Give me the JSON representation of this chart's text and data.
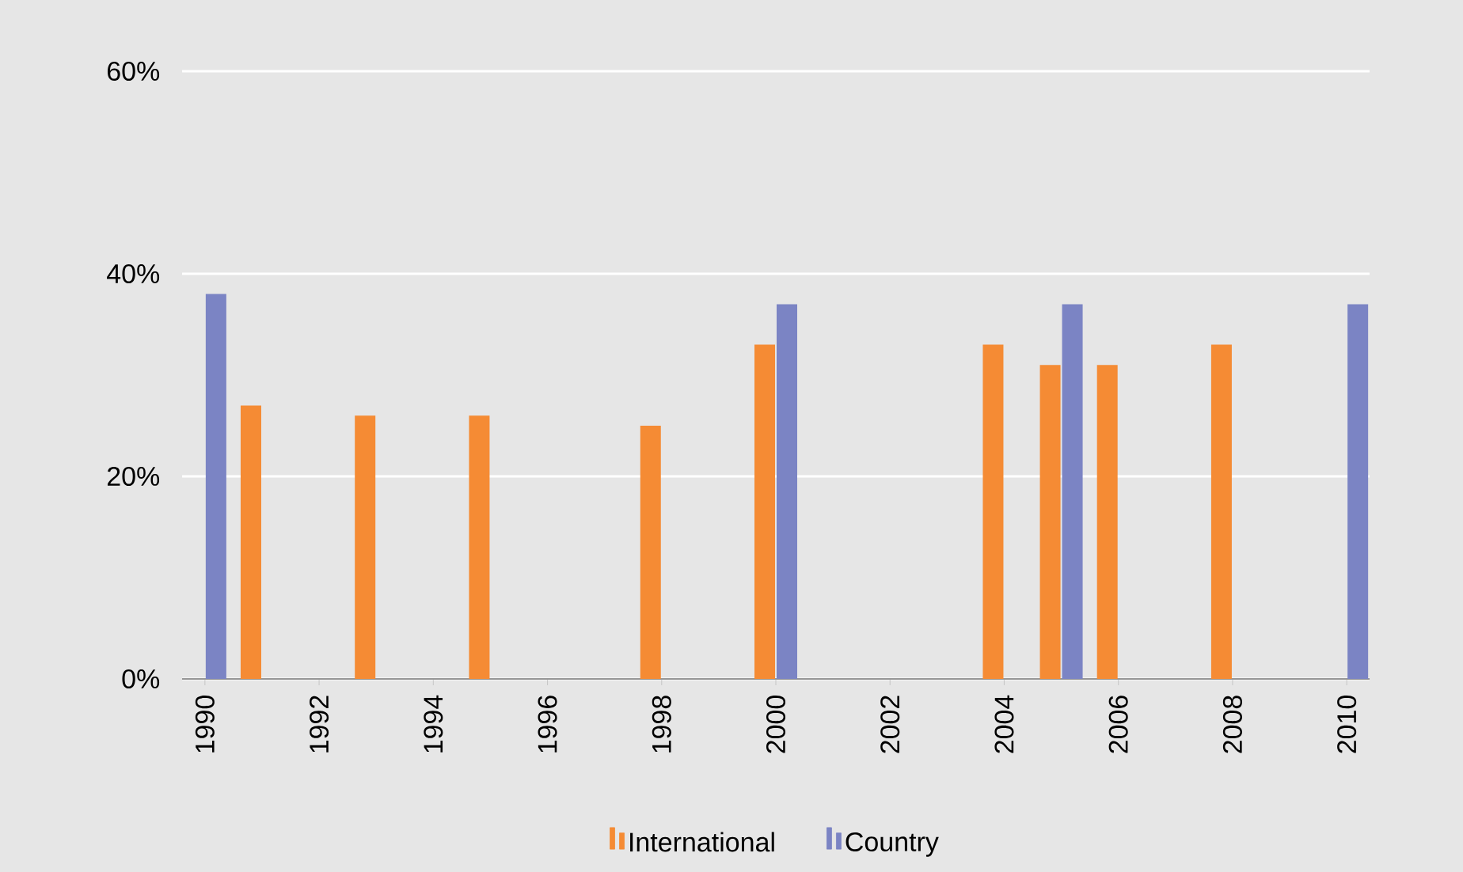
{
  "chart_data": {
    "type": "bar",
    "series": [
      {
        "name": "International",
        "color": "#f58b34",
        "x": [
          1991,
          1993,
          1995,
          1998,
          2000,
          2004,
          2005,
          2006,
          2008
        ],
        "values": [
          27,
          26,
          26,
          25,
          33,
          33,
          31,
          31,
          33
        ]
      },
      {
        "name": "Country",
        "color": "#7b84c4",
        "x": [
          1990,
          2000,
          2005,
          2010
        ],
        "values": [
          38,
          37,
          37,
          37
        ]
      }
    ],
    "xlim": [
      1989.6,
      2010.4
    ],
    "xticks": [
      1990,
      1992,
      1994,
      1996,
      1998,
      2000,
      2002,
      2004,
      2006,
      2008,
      2010
    ],
    "ylim": [
      0,
      60
    ],
    "yticks": [
      {
        "value": 0,
        "label": "0%"
      },
      {
        "value": 20,
        "label": "20%"
      },
      {
        "value": 40,
        "label": "40%"
      },
      {
        "value": 60,
        "label": "60%"
      }
    ],
    "grid": "y",
    "legend": "bottom"
  }
}
